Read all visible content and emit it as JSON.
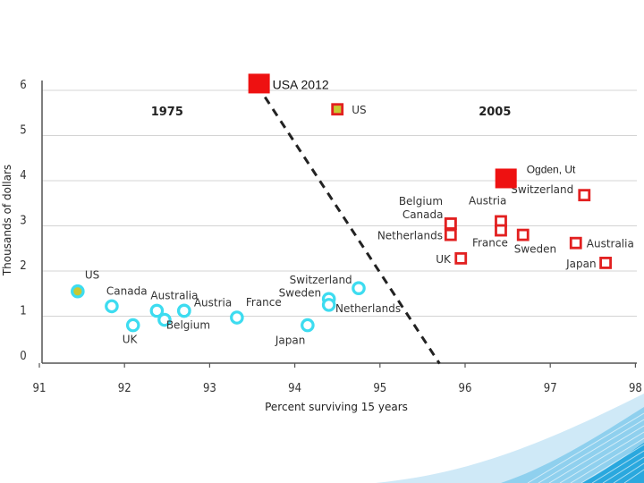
{
  "chart_data": {
    "type": "scatter",
    "xlabel": "Percent surviving 15 years",
    "ylabel": "Thousands of dollars",
    "xlim": [
      91,
      98
    ],
    "ylim": [
      0,
      6
    ],
    "x_ticks": [
      "91",
      "92",
      "93",
      "94",
      "95",
      "96",
      "97",
      "98"
    ],
    "y_ticks": [
      "0",
      "1",
      "2",
      "3",
      "4",
      "5",
      "6"
    ],
    "grid": "horizontal",
    "colors": {
      "series_1975": "#3ddcf0",
      "series_2005": "#e22020",
      "us_fill": "#c8c832",
      "divider": "#222222",
      "callout": "#ee1111"
    },
    "year_labels": [
      {
        "text": "1975",
        "x": 92.5,
        "y": 5.45
      },
      {
        "text": "2005",
        "x": 96.35,
        "y": 5.45
      }
    ],
    "series": [
      {
        "name": "1975",
        "points": [
          {
            "label": "US",
            "x": 91.45,
            "y": 1.55
          },
          {
            "label": "Canada",
            "x": 91.85,
            "y": 1.22
          },
          {
            "label": "UK",
            "x": 92.1,
            "y": 0.8
          },
          {
            "label": "Australia",
            "x": 92.38,
            "y": 1.12
          },
          {
            "label": "",
            "x": 92.47,
            "y": 0.92
          },
          {
            "label": "Belgium",
            "x": 92.7,
            "y": 1.12
          },
          {
            "label": "Austria",
            "x": 92.7,
            "y": 1.12
          },
          {
            "label": "France",
            "x": 93.32,
            "y": 0.97
          },
          {
            "label": "Japan",
            "x": 94.15,
            "y": 0.8
          },
          {
            "label": "Sweden",
            "x": 94.4,
            "y": 1.38
          },
          {
            "label": "Switzerland",
            "x": 94.4,
            "y": 1.25
          },
          {
            "label": "Netherlands",
            "x": 94.75,
            "y": 1.62
          }
        ]
      },
      {
        "name": "2005",
        "points": [
          {
            "label": "US",
            "x": 94.5,
            "y": 5.58
          },
          {
            "label": "Belgium",
            "x": 95.83,
            "y": 3.05
          },
          {
            "label": "Canada",
            "x": 95.83,
            "y": 3.05
          },
          {
            "label": "Netherlands",
            "x": 95.83,
            "y": 2.8
          },
          {
            "label": "UK",
            "x": 95.95,
            "y": 2.28
          },
          {
            "label": "Austria",
            "x": 96.42,
            "y": 3.1
          },
          {
            "label": "France",
            "x": 96.42,
            "y": 2.9
          },
          {
            "label": "Sweden",
            "x": 96.68,
            "y": 2.8
          },
          {
            "label": "Switzerland",
            "x": 97.4,
            "y": 3.68
          },
          {
            "label": "Australia",
            "x": 97.3,
            "y": 2.62
          },
          {
            "label": "Japan",
            "x": 97.65,
            "y": 2.18
          }
        ]
      }
    ],
    "callouts": [
      {
        "label": "USA 2012",
        "x": 93.58,
        "y": 6.15
      },
      {
        "label": "Ogden, Ut",
        "x": 96.48,
        "y": 4.05
      }
    ],
    "divider_line": {
      "from": [
        93.65,
        5.85
      ],
      "to": [
        95.7,
        -0.05
      ]
    }
  }
}
